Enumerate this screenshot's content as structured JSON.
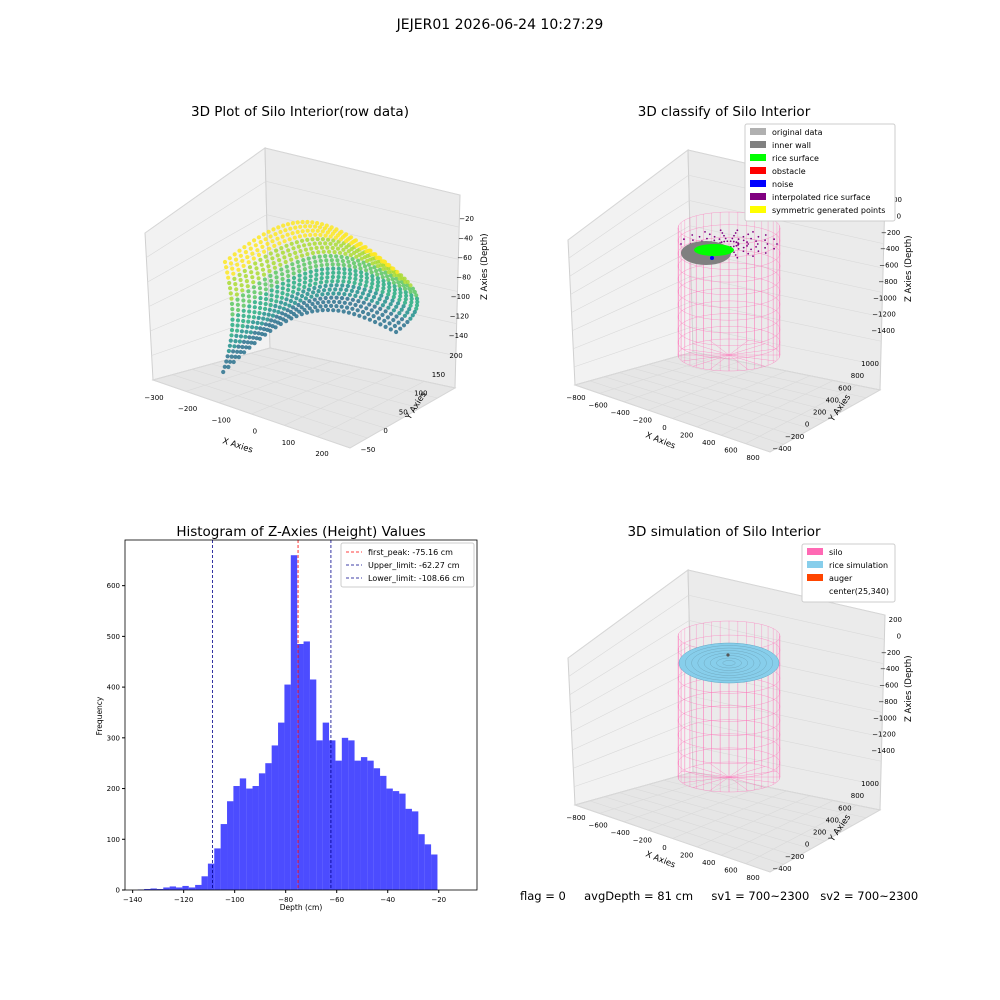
{
  "suptitle": "JEJER01 2026-06-24 10:27:29",
  "footer": "flag = 0     avgDepth = 81 cm     sv1 = 700~2300   sv2 = 700~2300",
  "colors": {
    "histogram": "#0000ff",
    "first_peak": "#ff0000",
    "limits": "#00008b",
    "silo": "#ff69b4",
    "rice_simulation": "#87ceeb",
    "auger": "#ff4500",
    "original_data": "#b0b0b0",
    "inner_wall": "#808080",
    "rice_surface": "#00ff00",
    "obstacle": "#ff0000",
    "noise": "#0000ff",
    "interpolated_rice_surface": "#800080",
    "symmetric_generated_points": "#ffff00",
    "pane": "#f2f2f2",
    "grid": "#d9d9d9"
  },
  "panels": {
    "raw": {
      "title": "3D Plot of Silo Interior(row data)",
      "xlabel": "X Axies",
      "ylabel": "Y Axies",
      "zlabel": "Z Axies (Depth)",
      "xticks": [
        "−300",
        "−200",
        "−100",
        "0",
        "100",
        "200"
      ],
      "yticks": [
        "−50",
        "0",
        "50",
        "100",
        "150",
        "200"
      ],
      "zticks": [
        "−20",
        "−40",
        "−60",
        "−80",
        "−100",
        "−120",
        "−140"
      ]
    },
    "classify": {
      "title": "3D classify of Silo Interior",
      "xlabel": "X Axies",
      "ylabel": "Y Axies",
      "zlabel": "Z Axies (Depth)",
      "xticks": [
        "−800",
        "−600",
        "−400",
        "−200",
        "0",
        "200",
        "400",
        "600",
        "800"
      ],
      "yticks": [
        "−400",
        "−200",
        "0",
        "200",
        "400",
        "600",
        "800",
        "1000"
      ],
      "zticks": [
        "200",
        "0",
        "−200",
        "−400",
        "−600",
        "−800",
        "−1000",
        "−1200",
        "−1400"
      ],
      "legend": [
        {
          "label": "original data",
          "color": "#b0b0b0"
        },
        {
          "label": "inner wall",
          "color": "#808080"
        },
        {
          "label": "rice surface",
          "color": "#00ff00"
        },
        {
          "label": "obstacle",
          "color": "#ff0000"
        },
        {
          "label": "noise",
          "color": "#0000ff"
        },
        {
          "label": "interpolated rice surface",
          "color": "#800080"
        },
        {
          "label": "symmetric generated points",
          "color": "#ffff00"
        }
      ]
    },
    "simulation": {
      "title": "3D simulation of Silo Interior",
      "xlabel": "X Axies",
      "ylabel": "Y Axies",
      "zlabel": "Z Axies (Depth)",
      "xticks": [
        "−800",
        "−600",
        "−400",
        "−200",
        "0",
        "200",
        "400",
        "600",
        "800"
      ],
      "yticks": [
        "−400",
        "−200",
        "0",
        "200",
        "400",
        "600",
        "800",
        "1000"
      ],
      "zticks": [
        "200",
        "0",
        "−200",
        "−400",
        "−600",
        "−800",
        "−1000",
        "−1200",
        "−1400"
      ],
      "legend": [
        {
          "label": "silo",
          "color": "#ff69b4"
        },
        {
          "label": "rice simulation",
          "color": "#87ceeb"
        },
        {
          "label": "auger",
          "color": "#ff4500"
        },
        {
          "label": "center(25,340)",
          "color": ""
        }
      ]
    }
  },
  "chart_data": {
    "type": "bar",
    "title": "Histogram of Z-Axies (Height) Values",
    "xlabel": "Depth (cm)",
    "ylabel": "Frequency",
    "xlim": [
      -143,
      -5
    ],
    "ylim": [
      0,
      690
    ],
    "xticks": [
      -140,
      -120,
      -100,
      -80,
      -60,
      -40,
      -20
    ],
    "xtick_labels": [
      "−140",
      "−120",
      "−100",
      "−80",
      "−60",
      "−40",
      "−20"
    ],
    "yticks": [
      0,
      100,
      200,
      300,
      400,
      500,
      600
    ],
    "bin_start": -138,
    "bin_width": 2.5,
    "values": [
      1,
      2,
      3,
      2,
      5,
      7,
      5,
      8,
      5,
      10,
      27,
      52,
      82,
      130,
      175,
      205,
      220,
      200,
      205,
      230,
      250,
      285,
      330,
      405,
      660,
      485,
      490,
      415,
      295,
      330,
      295,
      255,
      300,
      295,
      255,
      262,
      255,
      240,
      225,
      200,
      195,
      190,
      160,
      155,
      110,
      90,
      70
    ],
    "vlines": [
      {
        "label": "first_peak: -75.16 cm",
        "x": -75.16,
        "color": "#ff0000"
      },
      {
        "label": "Upper_limit: -62.27 cm",
        "x": -62.27,
        "color": "#00008b"
      },
      {
        "label": "Lower_limit: -108.66 cm",
        "x": -108.66,
        "color": "#00008b"
      }
    ]
  }
}
